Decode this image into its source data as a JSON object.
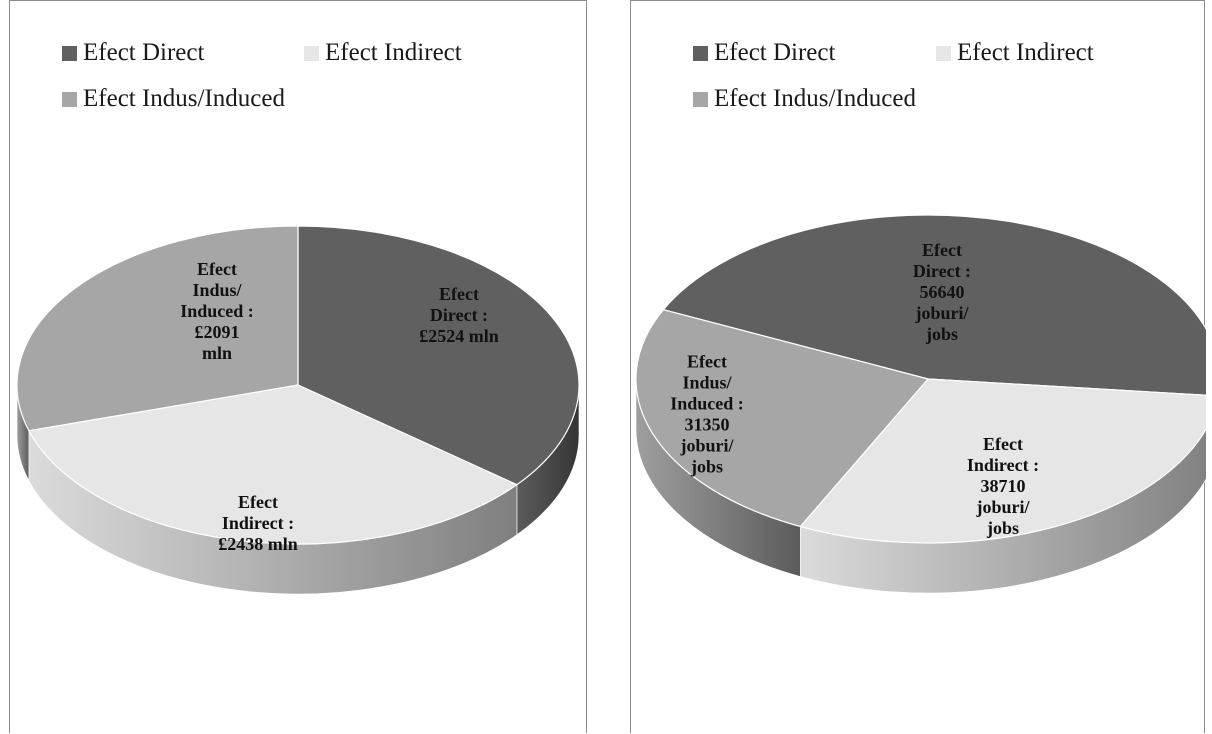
{
  "chart_data": [
    {
      "type": "pie",
      "title": "",
      "legend_position": "top",
      "categories": [
        "Efect Direct",
        "Efect Indirect",
        "Efect Indus/Induced"
      ],
      "values": [
        2524,
        2438,
        2091
      ],
      "unit": "£ mln",
      "colors": [
        "#606060",
        "#e6e6e6",
        "#a6a6a6"
      ],
      "data_labels": [
        [
          "Efect",
          "Direct :",
          "£2524 mln"
        ],
        [
          "Efect",
          "Indirect :",
          "£2438 mln"
        ],
        [
          "Efect",
          "Indus/",
          "Induced :",
          "£2091",
          "mln"
        ]
      ]
    },
    {
      "type": "pie",
      "title": "",
      "legend_position": "top",
      "categories": [
        "Efect Direct",
        "Efect Indirect",
        "Efect Indus/Induced"
      ],
      "values": [
        56640,
        38710,
        31350
      ],
      "unit": "joburi/jobs",
      "colors": [
        "#606060",
        "#e6e6e6",
        "#a6a6a6"
      ],
      "data_labels": [
        [
          "Efect",
          "Direct :",
          "56640",
          "joburi/",
          "jobs"
        ],
        [
          "Efect",
          "Indirect :",
          "38710",
          "joburi/",
          "jobs"
        ],
        [
          "Efect",
          "Indus/",
          "Induced :",
          "31350",
          "joburi/",
          "jobs"
        ]
      ]
    }
  ]
}
